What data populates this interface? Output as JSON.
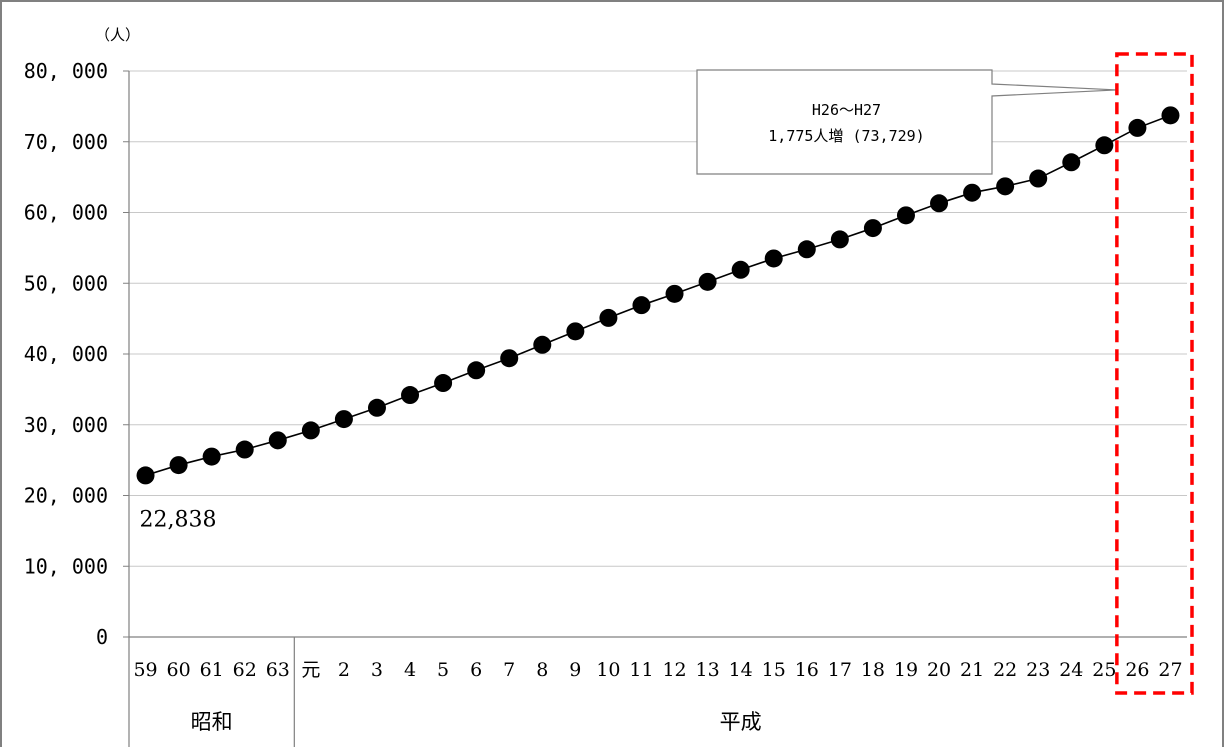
{
  "chart_data": {
    "type": "line",
    "unit_label": "（人）",
    "ylim": [
      0,
      80000
    ],
    "yticks": [
      "0",
      "10, 000",
      "20, 000",
      "30, 000",
      "40, 000",
      "50, 000",
      "60, 000",
      "70, 000",
      "80, 000"
    ],
    "grid": true,
    "categories": [
      "59",
      "60",
      "61",
      "62",
      "63",
      "元",
      "2",
      "3",
      "4",
      "5",
      "6",
      "7",
      "8",
      "9",
      "10",
      "11",
      "12",
      "13",
      "14",
      "15",
      "16",
      "17",
      "18",
      "19",
      "20",
      "21",
      "22",
      "23",
      "24",
      "25",
      "26",
      "27"
    ],
    "eras": [
      {
        "label": "昭和",
        "from": 0,
        "to": 4
      },
      {
        "label": "平成",
        "from": 5,
        "to": 31
      }
    ],
    "series": [
      {
        "values": [
          22838,
          24300,
          25500,
          26500,
          27800,
          29200,
          30800,
          32400,
          34200,
          35900,
          37700,
          39400,
          41300,
          43200,
          45100,
          46900,
          48500,
          50200,
          51900,
          53500,
          54800,
          56200,
          57800,
          59600,
          61300,
          62800,
          63700,
          64800,
          67100,
          69500,
          71954,
          73729
        ],
        "color": "#000000"
      }
    ],
    "data_label": {
      "index": 0,
      "text": "22,838"
    },
    "callout": {
      "line1": "H26～H27",
      "line2": "1,775人増 (73,729)"
    },
    "highlight": {
      "from": 30,
      "to": 31,
      "color": "#ff0000"
    }
  }
}
